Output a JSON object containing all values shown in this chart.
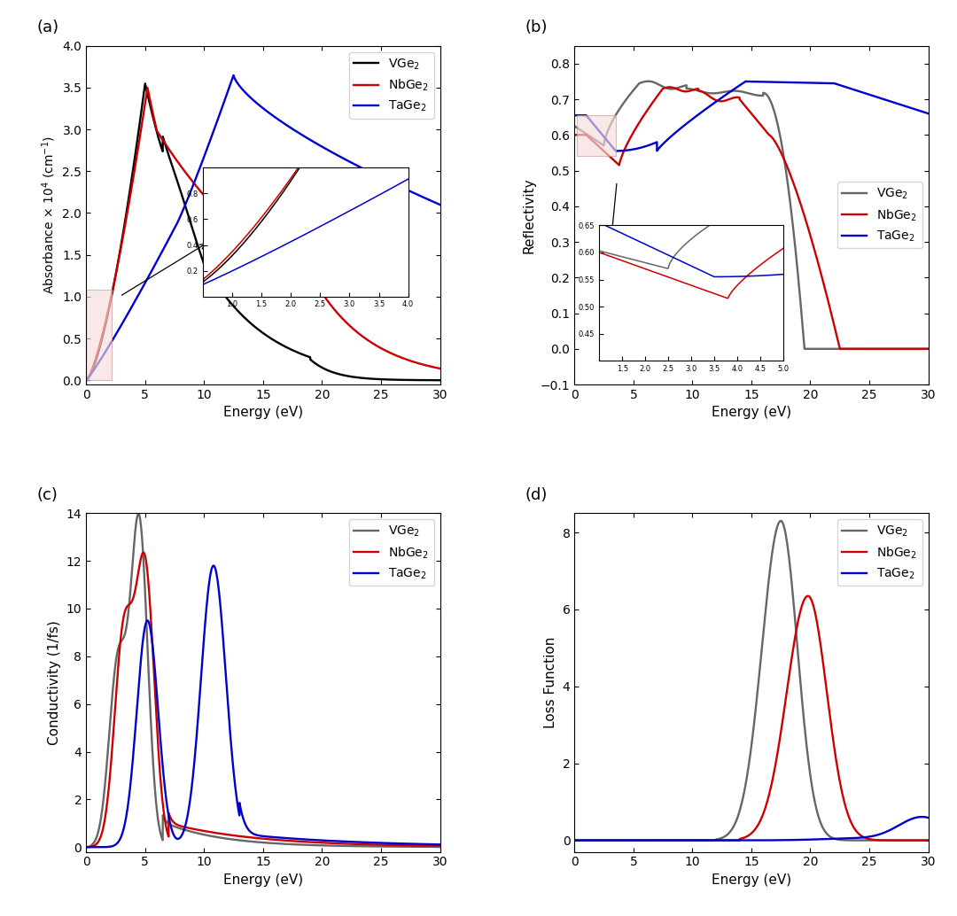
{
  "fig_width": 10.8,
  "fig_height": 10.34,
  "colors_ab": {
    "V": "#000000",
    "Nb": "#cc0000",
    "Ta": "#0000cc"
  },
  "colors_bcd": {
    "V": "#666666",
    "Nb": "#cc0000",
    "Ta": "#0000cc"
  },
  "panel_a": {
    "xlabel": "Energy (eV)",
    "ylabel": "Absorbance × 10$^4$ (cm$^{-1}$)",
    "xlim": [
      0,
      30
    ],
    "ylim": [
      -0.05,
      4.0
    ],
    "yticks": [
      0.0,
      0.5,
      1.0,
      1.5,
      2.0,
      2.5,
      3.0,
      3.5,
      4.0
    ],
    "xticks": [
      0,
      5,
      10,
      15,
      20,
      25,
      30
    ]
  },
  "panel_b": {
    "xlabel": "Energy (eV)",
    "ylabel": "Reflectivity",
    "xlim": [
      0,
      30
    ],
    "ylim": [
      -0.1,
      0.85
    ],
    "yticks": [
      -0.1,
      0.0,
      0.1,
      0.2,
      0.3,
      0.4,
      0.5,
      0.6,
      0.7,
      0.8
    ],
    "xticks": [
      0,
      5,
      10,
      15,
      20,
      25,
      30
    ]
  },
  "panel_c": {
    "xlabel": "Energy (eV)",
    "ylabel": "Conductivity (1/fs)",
    "xlim": [
      0,
      30
    ],
    "ylim": [
      -0.2,
      14
    ],
    "yticks": [
      0,
      2,
      4,
      6,
      8,
      10,
      12,
      14
    ],
    "xticks": [
      0,
      5,
      10,
      15,
      20,
      25,
      30
    ]
  },
  "panel_d": {
    "xlabel": "Energy (eV)",
    "ylabel": "Loss Function",
    "xlim": [
      0,
      30
    ],
    "ylim": [
      -0.3,
      8.5
    ],
    "yticks": [
      0,
      2,
      4,
      6,
      8
    ],
    "xticks": [
      0,
      5,
      10,
      15,
      20,
      25,
      30
    ]
  }
}
